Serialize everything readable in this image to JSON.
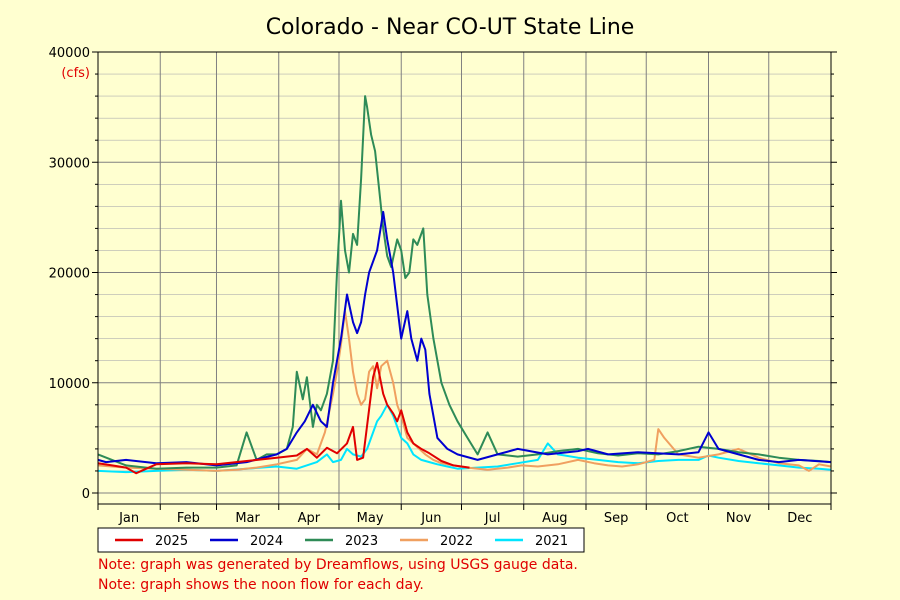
{
  "colors": {
    "background": "#ffffd0",
    "grid": "#808080",
    "note": "#e00000"
  },
  "notes": [
    "Note: graph was generated by Dreamflows, using USGS gauge data.",
    "Note: graph shows the noon flow for each day."
  ],
  "chart_data": {
    "type": "line",
    "title": "Colorado - Near CO-UT State Line",
    "ylabel": "(cfs)",
    "xlabel": "",
    "ylim": [
      0,
      40000
    ],
    "xlim": [
      1,
      366
    ],
    "y_ticks": [
      0,
      10000,
      20000,
      30000,
      40000
    ],
    "y_minor_step": 2000,
    "x_month_starts": [
      1,
      32,
      60,
      91,
      121,
      152,
      182,
      213,
      244,
      274,
      305,
      335,
      366
    ],
    "x_tick_labels": [
      "Jan",
      "Feb",
      "Mar",
      "Apr",
      "May",
      "Jun",
      "Jul",
      "Aug",
      "Sep",
      "Oct",
      "Nov",
      "Dec"
    ],
    "grid": true,
    "legend_position": "bottom",
    "series": [
      {
        "name": "2025",
        "color": "#e00000",
        "x": [
          1,
          8,
          15,
          20,
          30,
          45,
          60,
          75,
          90,
          100,
          105,
          110,
          115,
          120,
          125,
          128,
          130,
          133,
          138,
          140,
          143,
          145,
          148,
          150,
          152,
          155,
          158,
          162,
          166,
          172,
          178,
          186
        ],
        "y": [
          2700,
          2500,
          2300,
          1800,
          2600,
          2700,
          2600,
          2900,
          3200,
          3400,
          4000,
          3200,
          4100,
          3600,
          4500,
          6000,
          3000,
          3200,
          10500,
          11800,
          9000,
          8000,
          7200,
          6500,
          7500,
          5500,
          4500,
          4000,
          3600,
          2900,
          2500,
          2300
        ]
      },
      {
        "name": "2024",
        "color": "#0000d0",
        "x": [
          1,
          5,
          15,
          30,
          45,
          60,
          75,
          90,
          95,
          100,
          104,
          108,
          112,
          115,
          118,
          122,
          125,
          128,
          130,
          132,
          134,
          136,
          140,
          143,
          145,
          148,
          150,
          152,
          155,
          157,
          160,
          162,
          164,
          166,
          170,
          175,
          180,
          190,
          200,
          210,
          225,
          240,
          245,
          255,
          270,
          290,
          300,
          305,
          310,
          320,
          330,
          340,
          350,
          366
        ],
        "y": [
          3000,
          2800,
          3000,
          2700,
          2800,
          2500,
          2800,
          3500,
          4000,
          5500,
          6500,
          8000,
          6500,
          6000,
          10000,
          14000,
          18000,
          15500,
          14500,
          15500,
          18000,
          20000,
          22000,
          25500,
          23000,
          20000,
          17000,
          14000,
          16500,
          14000,
          12000,
          14000,
          13000,
          9000,
          5000,
          4000,
          3500,
          3000,
          3500,
          4000,
          3500,
          3800,
          4000,
          3500,
          3700,
          3500,
          3700,
          5500,
          4000,
          3500,
          3000,
          2800,
          3000,
          2800
        ]
      },
      {
        "name": "2023",
        "color": "#2e8b57",
        "x": [
          1,
          15,
          30,
          45,
          60,
          70,
          75,
          80,
          85,
          90,
          95,
          98,
          100,
          103,
          105,
          108,
          110,
          112,
          115,
          118,
          120,
          122,
          124,
          126,
          128,
          130,
          132,
          134,
          135,
          137,
          139,
          141,
          143,
          145,
          147,
          150,
          152,
          154,
          156,
          158,
          160,
          163,
          165,
          168,
          172,
          176,
          180,
          185,
          190,
          195,
          200,
          210,
          220,
          230,
          240,
          250,
          260,
          270,
          280,
          290,
          300,
          310,
          320,
          330,
          340,
          350,
          360,
          366
        ],
        "y": [
          3500,
          2500,
          2200,
          2300,
          2300,
          2500,
          5500,
          3000,
          3500,
          3500,
          4000,
          6000,
          11000,
          8500,
          10500,
          6000,
          8000,
          7500,
          9000,
          12000,
          20000,
          26500,
          22000,
          20000,
          23500,
          22500,
          28500,
          36000,
          35000,
          32500,
          31000,
          27500,
          24000,
          21500,
          20500,
          23000,
          22000,
          19500,
          20000,
          23000,
          22500,
          24000,
          18000,
          14000,
          10000,
          8000,
          6500,
          5000,
          3500,
          5500,
          3500,
          3300,
          3500,
          3800,
          4000,
          3600,
          3400,
          3600,
          3500,
          3800,
          4200,
          4000,
          3700,
          3500,
          3200,
          3000,
          2900,
          2800
        ]
      },
      {
        "name": "2022",
        "color": "#f0a060",
        "x": [
          1,
          15,
          30,
          45,
          60,
          70,
          80,
          90,
          100,
          105,
          110,
          114,
          118,
          120,
          122,
          124,
          126,
          128,
          130,
          132,
          134,
          136,
          138,
          140,
          142,
          145,
          148,
          150,
          152,
          155,
          158,
          161,
          164,
          168,
          172,
          178,
          185,
          195,
          205,
          212,
          220,
          230,
          240,
          248,
          255,
          262,
          270,
          278,
          280,
          283,
          290,
          300,
          310,
          320,
          330,
          340,
          350,
          355,
          360,
          366
        ],
        "y": [
          2500,
          2300,
          2200,
          2100,
          2000,
          2100,
          2300,
          2600,
          3000,
          4000,
          3500,
          5500,
          9000,
          11000,
          13500,
          16500,
          14000,
          11000,
          9000,
          8000,
          8500,
          11000,
          11500,
          9500,
          11500,
          12000,
          10000,
          8000,
          7000,
          5000,
          4500,
          4000,
          3500,
          3000,
          2700,
          2500,
          2300,
          2100,
          2300,
          2500,
          2400,
          2600,
          3000,
          2700,
          2500,
          2400,
          2600,
          3000,
          5800,
          5000,
          3500,
          3200,
          3500,
          4000,
          3200,
          2700,
          2500,
          2000,
          2600,
          2400
        ]
      },
      {
        "name": "2021",
        "color": "#00e5ff",
        "x": [
          1,
          15,
          30,
          45,
          60,
          75,
          90,
          100,
          110,
          115,
          118,
          122,
          125,
          128,
          132,
          135,
          138,
          140,
          142,
          145,
          148,
          150,
          152,
          155,
          158,
          162,
          166,
          170,
          175,
          180,
          190,
          200,
          210,
          220,
          225,
          230,
          240,
          250,
          260,
          270,
          280,
          290,
          300,
          305,
          310,
          320,
          330,
          340,
          350,
          360,
          366
        ],
        "y": [
          2000,
          1900,
          2000,
          2100,
          2000,
          2200,
          2400,
          2200,
          2800,
          3500,
          2800,
          3000,
          4000,
          3500,
          3300,
          4000,
          5500,
          6500,
          7000,
          8000,
          7000,
          6000,
          5000,
          4500,
          3500,
          3000,
          2800,
          2600,
          2400,
          2200,
          2300,
          2400,
          2700,
          3000,
          4500,
          3500,
          3200,
          3000,
          2800,
          2700,
          2900,
          3000,
          3000,
          3400,
          3200,
          2900,
          2700,
          2500,
          2300,
          2200,
          2100
        ]
      }
    ]
  }
}
